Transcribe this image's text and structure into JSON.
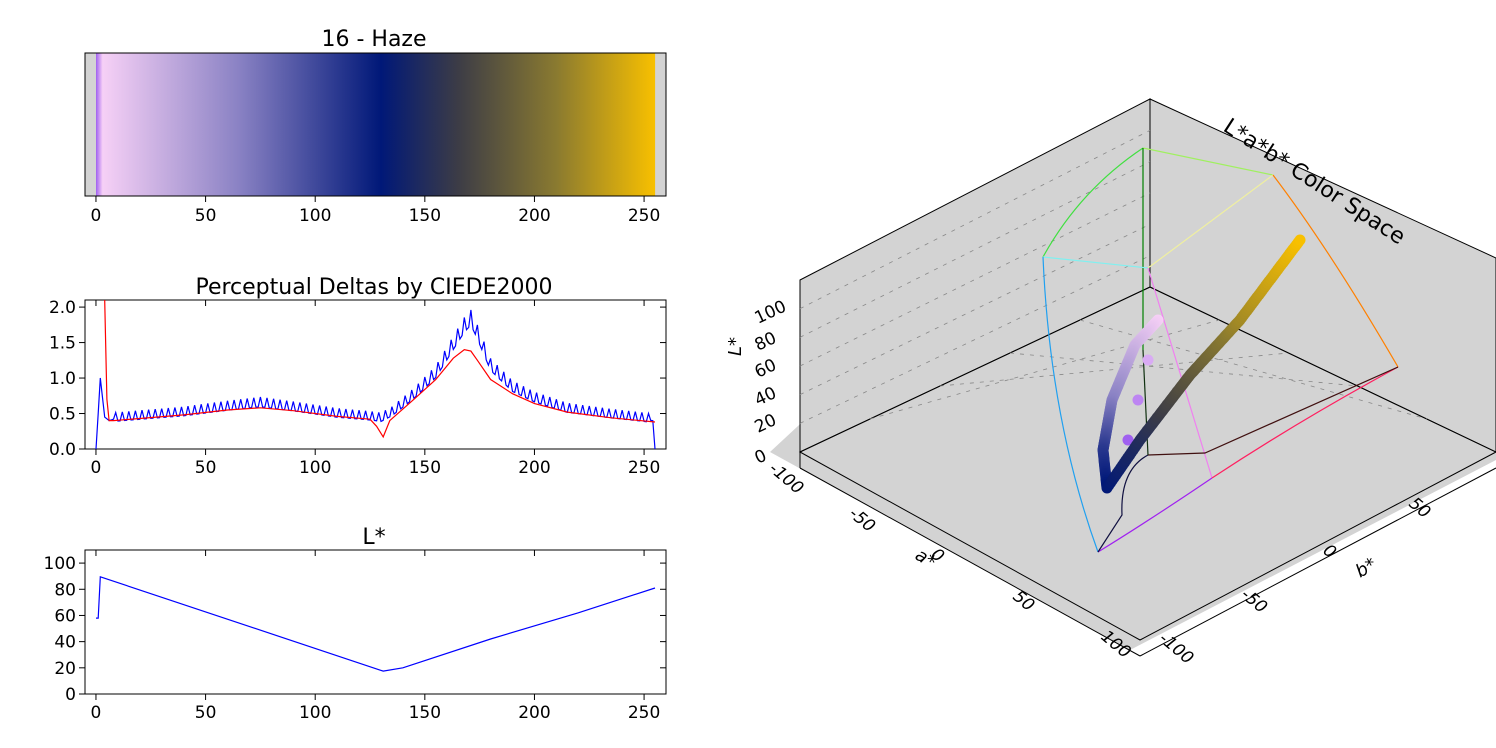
{
  "chart_data": [
    {
      "type": "heatmap",
      "title": "16 - Haze",
      "x_ticks": [
        0,
        50,
        100,
        150,
        200,
        250
      ],
      "xlim": [
        -5,
        260
      ],
      "colormap_stops": [
        {
          "index": 0,
          "color": "#a060f0"
        },
        {
          "index": 3,
          "color": "#f6d0f6"
        },
        {
          "index": 65,
          "color": "#8a82c4"
        },
        {
          "index": 130,
          "color": "#001878"
        },
        {
          "index": 165,
          "color": "#3c3c46"
        },
        {
          "index": 210,
          "color": "#8a7a30"
        },
        {
          "index": 255,
          "color": "#f8c000"
        }
      ],
      "background_color": "#d3d3d3"
    },
    {
      "type": "line",
      "title": "Perceptual Deltas by CIEDE2000",
      "xlim": [
        -5,
        260
      ],
      "ylim": [
        0,
        2.1
      ],
      "x_ticks": [
        0,
        50,
        100,
        150,
        200,
        250
      ],
      "y_ticks": [
        "0.0",
        "0.5",
        "1.0",
        "1.5",
        "2.0"
      ],
      "series": [
        {
          "color": "#0000ff",
          "style": "oscillating",
          "x": [
            0,
            2,
            4,
            6,
            8,
            20,
            40,
            60,
            75,
            90,
            110,
            125,
            130,
            135,
            145,
            155,
            163,
            168,
            171,
            174,
            180,
            190,
            200,
            215,
            235,
            250,
            254,
            255
          ],
          "y": [
            0.0,
            1.0,
            0.45,
            0.4,
            0.42,
            0.45,
            0.5,
            0.58,
            0.63,
            0.57,
            0.48,
            0.44,
            0.42,
            0.5,
            0.75,
            1.05,
            1.45,
            1.7,
            1.8,
            1.6,
            1.15,
            0.85,
            0.7,
            0.55,
            0.47,
            0.42,
            0.4,
            0.0
          ]
        },
        {
          "color": "#ff0000",
          "style": "smooth",
          "x": [
            4,
            5,
            6,
            8,
            20,
            40,
            60,
            75,
            90,
            110,
            125,
            128,
            131,
            134,
            145,
            155,
            163,
            168,
            171,
            174,
            180,
            190,
            200,
            215,
            235,
            255
          ],
          "y": [
            2.1,
            0.7,
            0.4,
            0.4,
            0.43,
            0.48,
            0.55,
            0.58,
            0.54,
            0.46,
            0.42,
            0.32,
            0.17,
            0.4,
            0.7,
            0.98,
            1.28,
            1.4,
            1.38,
            1.25,
            0.98,
            0.78,
            0.64,
            0.52,
            0.44,
            0.38
          ]
        }
      ]
    },
    {
      "type": "line",
      "title": "L*",
      "xlim": [
        -5,
        260
      ],
      "ylim": [
        0,
        110
      ],
      "x_ticks": [
        0,
        50,
        100,
        150,
        200,
        250
      ],
      "y_ticks": [
        0,
        20,
        40,
        60,
        80,
        100
      ],
      "series": [
        {
          "color": "#0000ff",
          "x": [
            0,
            1,
            2,
            131,
            140,
            180,
            220,
            255
          ],
          "y": [
            58,
            58,
            89.5,
            17.5,
            20,
            42,
            62,
            81
          ]
        }
      ]
    },
    {
      "type": "scatter",
      "title": "L*a*b* Color Space",
      "xlabel": "a*",
      "ylabel": "b*",
      "zlabel": "L*",
      "a_ticks": [
        "-100",
        "-50",
        "0",
        "50",
        "100"
      ],
      "b_ticks": [
        "-100",
        "-50",
        "0",
        "50"
      ],
      "l_ticks": [
        "0",
        "20",
        "40",
        "60",
        "80",
        "100"
      ],
      "pane_color": "#d3d3d3"
    }
  ]
}
